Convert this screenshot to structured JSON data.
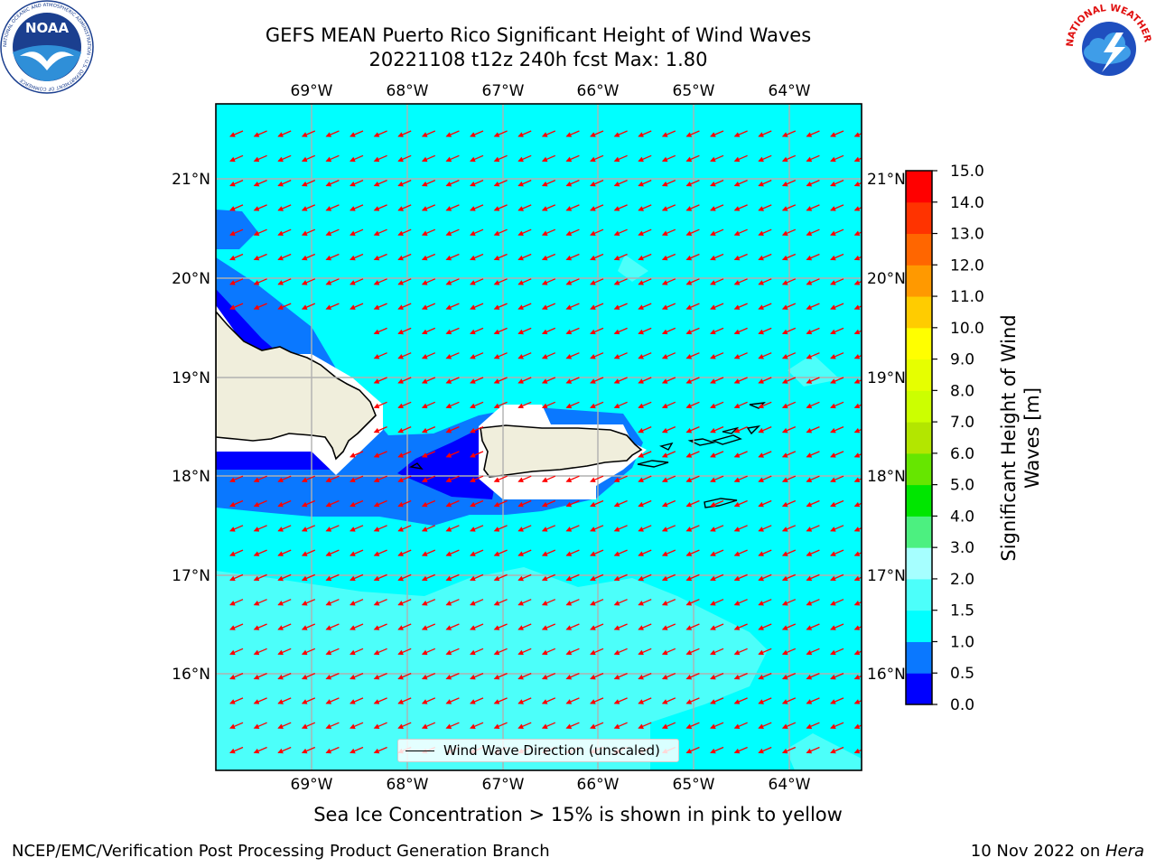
{
  "header": {
    "title_line1": "GEFS MEAN Puerto Rico Significant Height of Wind Waves",
    "title_line2": "20221108 t12z 240h fcst   Max: 1.80"
  },
  "logos": {
    "noaa_text": "NOAA",
    "noaa_ring_text": "NATIONAL OCEANIC AND ATMOSPHERIC ADMINISTRATION · U.S. DEPARTMENT OF COMMERCE",
    "nws_ring_text": "NATIONAL WEATHER SERVICE"
  },
  "map": {
    "lon_ticks": [
      "69°W",
      "68°W",
      "67°W",
      "66°W",
      "65°W",
      "64°W"
    ],
    "lat_ticks": [
      "21°N",
      "20°N",
      "19°N",
      "18°N",
      "17°N",
      "16°N"
    ],
    "lon_range": [
      -70.0,
      -63.25
    ],
    "lat_range": [
      15.0,
      21.75
    ],
    "grid": true,
    "wind_wave_direction": "from east-northeast toward west-southwest",
    "colors": {
      "land": "#f0eedc",
      "coast": "#000000",
      "arrow": "#ff0000",
      "grid": "#b0b0b0"
    }
  },
  "legend": {
    "label": "Wind Wave Direction (unscaled)"
  },
  "colorbar": {
    "label_line1": "Significant Height of Wind",
    "label_line2": "Waves [m]",
    "ticks": [
      "0.0",
      "0.5",
      "1.0",
      "1.5",
      "2.0",
      "3.0",
      "4.0",
      "5.0",
      "6.0",
      "7.0",
      "8.0",
      "9.0",
      "10.0",
      "11.0",
      "12.0",
      "13.0",
      "14.0",
      "15.0"
    ],
    "colors": [
      "#0000ff",
      "#0a78ff",
      "#00ffff",
      "#4cfffa",
      "#a6ffff",
      "#4cf080",
      "#00e600",
      "#66e600",
      "#b3e600",
      "#ccff00",
      "#e6ff00",
      "#ffff00",
      "#ffcc00",
      "#ff9900",
      "#ff6600",
      "#ff3300",
      "#ff0000"
    ]
  },
  "note": "Sea Ice Concentration > 15% is shown in pink to yellow",
  "footer": {
    "left": "NCEP/EMC/Verification Post Processing Product Generation Branch",
    "right_prefix": "10 Nov 2022 on ",
    "right_host": "Hera"
  }
}
